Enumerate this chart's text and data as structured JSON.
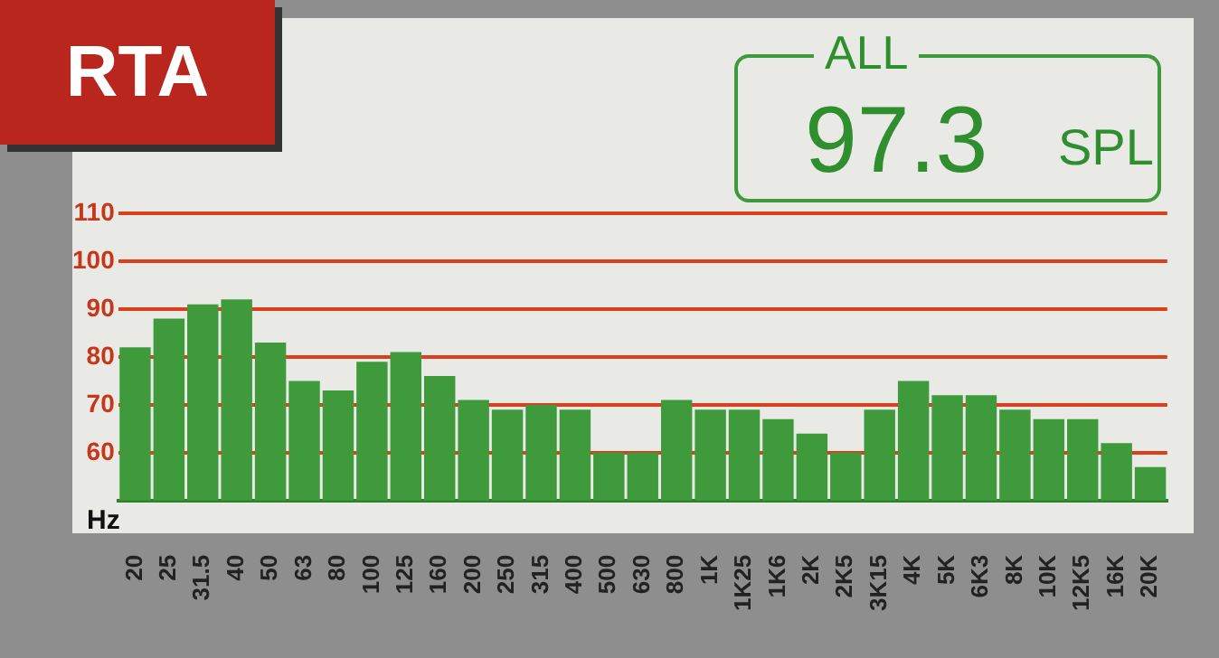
{
  "chart_data": {
    "type": "bar",
    "title": "RTA",
    "xlabel": "Hz",
    "annotations": [
      "ALL",
      "97.3",
      "SPL"
    ],
    "categories": [
      "20",
      "25",
      "31.5",
      "40",
      "50",
      "63",
      "80",
      "100",
      "125",
      "160",
      "200",
      "250",
      "315",
      "400",
      "500",
      "630",
      "800",
      "1K",
      "1K25",
      "1K6",
      "2K",
      "2K5",
      "3K15",
      "4K",
      "5K",
      "6K3",
      "8K",
      "10K",
      "12K5",
      "16K",
      "20K"
    ],
    "values": [
      82,
      88,
      91,
      92,
      83,
      75,
      73,
      79,
      81,
      76,
      71,
      69,
      70,
      69,
      60,
      60,
      71,
      69,
      69,
      67,
      64,
      60,
      69,
      75,
      72,
      72,
      69,
      67,
      67,
      62,
      57
    ],
    "color": "#3f9a3c",
    "ylim": [
      50,
      110
    ],
    "yticks": [
      60,
      70,
      80,
      90,
      100,
      110
    ],
    "grid": "y",
    "legend": false
  }
}
